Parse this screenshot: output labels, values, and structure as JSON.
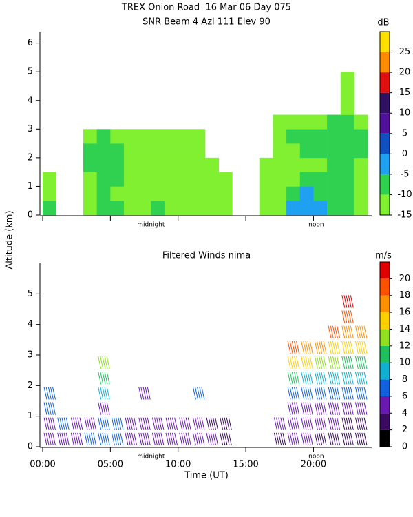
{
  "chart_data": [
    {
      "type": "heatmap",
      "title": "TREX Onion Road  16 Mar 06 Day 075",
      "subtitle": "SNR Beam 4 Azi 111 Elev 90",
      "ylabel": "Altitude (km)",
      "colorbar_label": "dB",
      "x": [
        0,
        1,
        2,
        3,
        4,
        5,
        6,
        7,
        8,
        9,
        10,
        11,
        12,
        13,
        14,
        15,
        16,
        17,
        18,
        19,
        20,
        21,
        22,
        23
      ],
      "y": [
        0,
        0.5,
        1,
        1.5,
        2,
        2.5,
        3,
        3.5,
        4,
        4.5
      ],
      "values": [
        [
          -10,
          null,
          null,
          -11,
          -8,
          -10,
          -12,
          -11,
          -10,
          -11,
          -12,
          -12,
          -11,
          -13,
          null,
          null,
          -12,
          -12,
          -5,
          -3,
          -2,
          -8,
          -10,
          -11
        ],
        [
          -11,
          null,
          null,
          -11,
          -9,
          -11,
          -12,
          -11,
          -11,
          -12,
          -12,
          -12,
          -12,
          -13,
          null,
          null,
          -12,
          -12,
          -8,
          -5,
          -7,
          -10,
          -10,
          -11
        ],
        [
          -12,
          null,
          null,
          -11,
          -8,
          -10,
          -12,
          -12,
          -11,
          -12,
          -12,
          -12,
          -13,
          -14,
          null,
          null,
          -12,
          -13,
          -11,
          -9,
          -10,
          -10,
          -10,
          -11
        ],
        [
          null,
          null,
          null,
          -10,
          -7,
          -10,
          -11,
          -12,
          -12,
          -12,
          -12,
          -13,
          -13,
          null,
          null,
          null,
          -13,
          -13,
          -12,
          -11,
          -11,
          -10,
          -9,
          -11
        ],
        [
          null,
          null,
          null,
          -9,
          -6,
          -9,
          -11,
          -12,
          -12,
          -11,
          -12,
          -13,
          null,
          null,
          null,
          null,
          null,
          -12,
          -11,
          -10,
          -9,
          -9,
          -8,
          -10
        ],
        [
          null,
          null,
          null,
          -11,
          -10,
          -11,
          -12,
          -13,
          -12,
          -12,
          -12,
          -13,
          null,
          null,
          null,
          null,
          null,
          -11,
          -10,
          -10,
          -9,
          -8,
          -6,
          -9
        ],
        [
          null,
          null,
          null,
          null,
          null,
          null,
          null,
          null,
          null,
          null,
          null,
          null,
          null,
          null,
          null,
          null,
          null,
          -12,
          -11,
          -11,
          -11,
          -10,
          -8,
          -11
        ],
        [
          null,
          null,
          null,
          null,
          null,
          null,
          null,
          null,
          null,
          null,
          null,
          null,
          null,
          null,
          null,
          null,
          null,
          null,
          null,
          null,
          null,
          null,
          -11,
          null
        ],
        [
          null,
          null,
          null,
          null,
          null,
          null,
          null,
          null,
          null,
          null,
          null,
          null,
          null,
          null,
          null,
          null,
          null,
          null,
          null,
          null,
          null,
          null,
          -12,
          null
        ],
        [
          null,
          null,
          null,
          null,
          null,
          null,
          null,
          null,
          null,
          null,
          null,
          null,
          null,
          null,
          null,
          null,
          null,
          null,
          null,
          null,
          null,
          null,
          -13,
          null
        ]
      ],
      "xlim": [
        0,
        24.3
      ],
      "ylim": [
        0,
        6.4
      ],
      "yticks": [
        0,
        1,
        2,
        3,
        4,
        5,
        6
      ],
      "color_bounds": [
        -15,
        -10,
        -5,
        0,
        5,
        10,
        15,
        20,
        25,
        30
      ],
      "colors": [
        "#80f030",
        "#30d050",
        "#20a0f0",
        "#1050c0",
        "#50109a",
        "#301060",
        "#e01010",
        "#ff8c00",
        "#ffe000"
      ],
      "colorbar_ticks": [
        -15,
        -10,
        -5,
        0,
        5,
        10,
        15,
        20,
        25
      ],
      "annotations": [
        {
          "text": "midnight",
          "x": 8
        },
        {
          "text": "noon",
          "x": 20.2
        }
      ]
    },
    {
      "type": "barbs",
      "title": "Filtered Winds nima",
      "colorbar_label": "m/s",
      "xlabel": "Time (UT)",
      "x": [
        0,
        1,
        2,
        3,
        4,
        5,
        6,
        7,
        8,
        9,
        10,
        11,
        12,
        13,
        14,
        15,
        16,
        17,
        18,
        19,
        20,
        21,
        22,
        23
      ],
      "y": [
        0.25,
        0.75,
        1.25,
        1.75,
        2.25,
        2.75,
        3.25,
        3.75,
        4.25,
        4.75
      ],
      "values": [
        [
          5,
          5,
          4,
          6,
          6,
          6,
          5,
          4,
          4,
          4,
          4,
          4,
          4,
          3,
          null,
          null,
          null,
          3,
          4,
          4,
          3,
          3,
          3,
          3
        ],
        [
          5,
          6,
          4,
          5,
          6,
          6,
          5,
          4,
          4,
          4,
          4,
          4,
          3,
          3,
          null,
          null,
          null,
          4,
          4,
          4,
          4,
          4,
          3,
          3
        ],
        [
          6,
          null,
          null,
          null,
          5,
          null,
          null,
          null,
          null,
          null,
          null,
          null,
          null,
          null,
          null,
          null,
          null,
          null,
          5,
          5,
          5,
          5,
          5,
          5
        ],
        [
          7,
          null,
          null,
          null,
          9,
          null,
          null,
          5,
          null,
          null,
          null,
          6,
          null,
          null,
          null,
          null,
          null,
          null,
          7,
          6,
          6,
          6,
          6,
          7
        ],
        [
          null,
          null,
          null,
          null,
          10,
          null,
          null,
          null,
          null,
          null,
          null,
          null,
          null,
          null,
          null,
          null,
          null,
          null,
          10,
          9,
          9,
          8,
          8,
          8
        ],
        [
          null,
          null,
          null,
          null,
          13,
          null,
          null,
          null,
          null,
          null,
          null,
          null,
          null,
          null,
          null,
          null,
          null,
          null,
          15,
          14,
          12,
          12,
          11,
          11
        ],
        [
          null,
          null,
          null,
          null,
          null,
          null,
          null,
          null,
          null,
          null,
          null,
          null,
          null,
          null,
          null,
          null,
          null,
          null,
          18,
          17,
          16,
          15,
          14,
          14
        ],
        [
          null,
          null,
          null,
          null,
          null,
          null,
          null,
          null,
          null,
          null,
          null,
          null,
          null,
          null,
          null,
          null,
          null,
          null,
          null,
          null,
          null,
          18,
          17,
          16
        ],
        [
          null,
          null,
          null,
          null,
          null,
          null,
          null,
          null,
          null,
          null,
          null,
          null,
          null,
          null,
          null,
          null,
          null,
          null,
          null,
          null,
          null,
          null,
          19,
          null
        ],
        [
          null,
          null,
          null,
          null,
          null,
          null,
          null,
          null,
          null,
          null,
          null,
          null,
          null,
          null,
          null,
          null,
          null,
          null,
          null,
          null,
          null,
          null,
          20,
          null
        ]
      ],
      "xlim": [
        0,
        24.3
      ],
      "ylim": [
        0,
        6
      ],
      "xticks": [
        {
          "value": 0,
          "label": "00:00"
        },
        {
          "value": 5,
          "label": "05:00"
        },
        {
          "value": 10,
          "label": "10:00"
        },
        {
          "value": 15,
          "label": "15:00"
        },
        {
          "value": 20,
          "label": "20:00"
        }
      ],
      "yticks": [
        0,
        1,
        2,
        3,
        4,
        5
      ],
      "color_bounds": [
        0,
        2,
        4,
        6,
        8,
        10,
        12,
        14,
        16,
        18,
        20,
        22
      ],
      "colors": [
        "#000000",
        "#3a0a60",
        "#6a1ab0",
        "#1060e0",
        "#10b0d0",
        "#20c060",
        "#90e020",
        "#ffd000",
        "#ff9000",
        "#ff5000",
        "#e00000"
      ],
      "colorbar_ticks": [
        0,
        2,
        4,
        6,
        8,
        10,
        12,
        14,
        16,
        18,
        20
      ],
      "annotations": [
        {
          "text": "midnight",
          "x": 8
        },
        {
          "text": "noon",
          "x": 20.2
        }
      ]
    }
  ]
}
